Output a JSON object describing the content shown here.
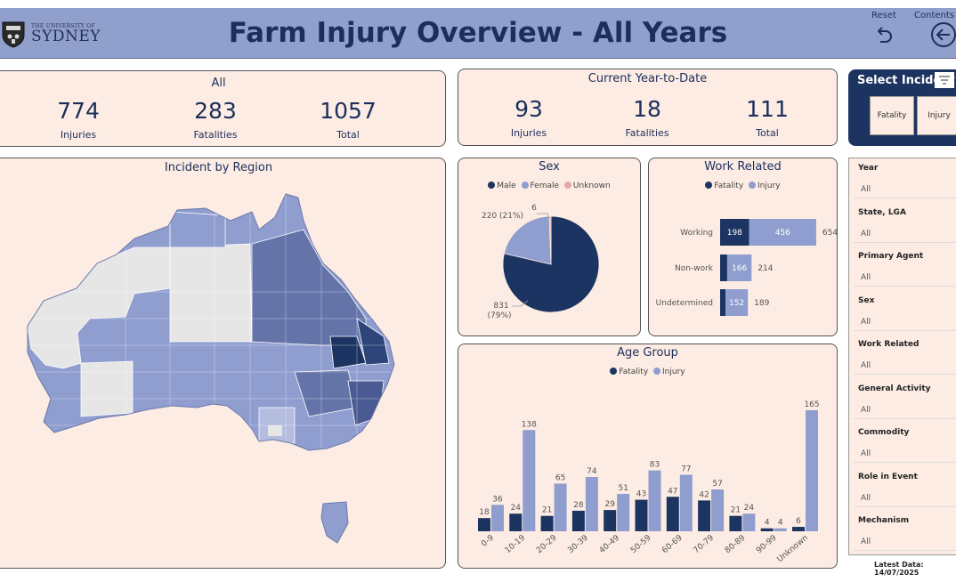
{
  "header": {
    "logo_small": "THE UNIVERSITY OF",
    "logo_big": "SYDNEY",
    "title": "Farm Injury Overview - All Years",
    "reset_label": "Reset",
    "contents_label": "Contents"
  },
  "all": {
    "title": "All",
    "injuries": "774",
    "injuries_label": "Injuries",
    "fatalities": "283",
    "fatalities_label": "Fatalities",
    "total": "1057",
    "total_label": "Total"
  },
  "ytd": {
    "title": "Current Year-to-Date",
    "injuries": "93",
    "injuries_label": "Injuries",
    "fatalities": "18",
    "fatalities_label": "Fatalities",
    "total": "111",
    "total_label": "Total"
  },
  "map": {
    "title": "Incident by Region"
  },
  "select_incident": {
    "title": "Select Incident",
    "options": [
      "Fatality",
      "Injury"
    ]
  },
  "filters": [
    {
      "label": "Year",
      "value": "All"
    },
    {
      "label": "State, LGA",
      "value": "All"
    },
    {
      "label": "Primary Agent",
      "value": "All"
    },
    {
      "label": "Sex",
      "value": "All"
    },
    {
      "label": "Work Related",
      "value": "All"
    },
    {
      "label": "General Activity",
      "value": "All"
    },
    {
      "label": "Commodity",
      "value": "All"
    },
    {
      "label": "Role in Event",
      "value": "All"
    },
    {
      "label": "Mechanism",
      "value": "All"
    }
  ],
  "latest_data": "Latest Data: 14/07/2025",
  "colors": {
    "fatality": "#1c3461",
    "injury": "#8f9dcf",
    "unknown": "#e3a8a8",
    "card_bg": "#fcece3",
    "header_bg": "#919fcc"
  },
  "chart_data": [
    {
      "type": "pie",
      "title": "Sex",
      "legend": [
        "Male",
        "Female",
        "Unknown"
      ],
      "values": [
        831,
        220,
        6
      ],
      "labels": [
        "831 (79%)",
        "220 (21%)",
        "6 (1%)"
      ]
    },
    {
      "type": "bar",
      "orientation": "horizontal",
      "stacked": true,
      "title": "Work Related",
      "legend": [
        "Fatality",
        "Injury"
      ],
      "categories": [
        "Working",
        "Non-work",
        "Undetermined"
      ],
      "series": [
        {
          "name": "Fatality",
          "values": [
            198,
            48,
            37
          ]
        },
        {
          "name": "Injury",
          "values": [
            456,
            166,
            152
          ]
        }
      ],
      "totals": [
        654,
        214,
        189
      ],
      "data_labels": {
        "Fatality": [
          "198",
          "",
          ""
        ],
        "Injury": [
          "456",
          "166",
          "152"
        ]
      }
    },
    {
      "type": "bar",
      "title": "Age Group",
      "legend": [
        "Fatality",
        "Injury"
      ],
      "categories": [
        "0-9",
        "10-19",
        "20-29",
        "30-39",
        "40-49",
        "50-59",
        "60-69",
        "70-79",
        "80-89",
        "90-99",
        "Unknown"
      ],
      "series": [
        {
          "name": "Fatality",
          "values": [
            18,
            24,
            21,
            28,
            29,
            43,
            47,
            42,
            21,
            4,
            6
          ]
        },
        {
          "name": "Injury",
          "values": [
            36,
            138,
            65,
            74,
            51,
            83,
            77,
            57,
            24,
            4,
            165
          ]
        }
      ],
      "ylim": [
        0,
        165
      ]
    }
  ]
}
